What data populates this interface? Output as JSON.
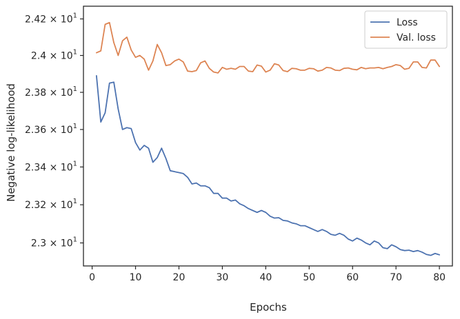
{
  "chart_data": {
    "type": "line",
    "xlabel": "Epochs",
    "ylabel": "Negative log-likelihood",
    "xlim": [
      -2,
      83
    ],
    "ylim": [
      22.88,
      24.27
    ],
    "x_ticks": [
      0,
      10,
      20,
      30,
      40,
      50,
      60,
      70,
      80
    ],
    "y_ticks": [
      {
        "value": 23.0,
        "mant": "2.3",
        "base": "10",
        "exp": "1"
      },
      {
        "value": 23.2,
        "mant": "2.32",
        "base": "10",
        "exp": "1"
      },
      {
        "value": 23.4,
        "mant": "2.34",
        "base": "10",
        "exp": "1"
      },
      {
        "value": 23.6,
        "mant": "2.36",
        "base": "10",
        "exp": "1"
      },
      {
        "value": 23.8,
        "mant": "2.38",
        "base": "10",
        "exp": "1"
      },
      {
        "value": 24.0,
        "mant": "2.4",
        "base": "10",
        "exp": "1"
      },
      {
        "value": 24.2,
        "mant": "2.42",
        "base": "10",
        "exp": "1"
      }
    ],
    "y_scale": "log",
    "grid": false,
    "legend_position": "top-right",
    "series": [
      {
        "name": "Loss",
        "color": "#4c72b0",
        "x": [
          1,
          2,
          3,
          4,
          5,
          6,
          7,
          8,
          9,
          10,
          11,
          12,
          13,
          14,
          15,
          16,
          17,
          18,
          19,
          20,
          21,
          22,
          23,
          24,
          25,
          26,
          27,
          28,
          29,
          30,
          31,
          32,
          33,
          34,
          35,
          36,
          37,
          38,
          39,
          40,
          41,
          42,
          43,
          44,
          45,
          46,
          47,
          48,
          49,
          50,
          51,
          52,
          53,
          54,
          55,
          56,
          57,
          58,
          59,
          60,
          61,
          62,
          63,
          64,
          65,
          66,
          67,
          68,
          69,
          70,
          71,
          72,
          73,
          74,
          75,
          76,
          77,
          78,
          79,
          80
        ],
        "y": [
          23.89,
          23.64,
          23.69,
          23.85,
          23.855,
          23.71,
          23.6,
          23.61,
          23.605,
          23.53,
          23.49,
          23.515,
          23.5,
          23.425,
          23.45,
          23.5,
          23.445,
          23.38,
          23.375,
          23.37,
          23.365,
          23.345,
          23.31,
          23.315,
          23.3,
          23.3,
          23.29,
          23.26,
          23.26,
          23.235,
          23.235,
          23.22,
          23.225,
          23.205,
          23.195,
          23.18,
          23.17,
          23.16,
          23.17,
          23.16,
          23.14,
          23.13,
          23.132,
          23.118,
          23.115,
          23.105,
          23.1,
          23.09,
          23.09,
          23.08,
          23.07,
          23.06,
          23.07,
          23.06,
          23.045,
          23.04,
          23.05,
          23.04,
          23.02,
          23.01,
          23.025,
          23.015,
          23.0,
          22.99,
          23.01,
          23.0,
          22.975,
          22.97,
          22.99,
          22.98,
          22.965,
          22.96,
          22.962,
          22.955,
          22.96,
          22.952,
          22.94,
          22.935,
          22.945,
          22.938
        ]
      },
      {
        "name": "Val. loss",
        "color": "#dd8452",
        "x": [
          1,
          2,
          3,
          4,
          5,
          6,
          7,
          8,
          9,
          10,
          11,
          12,
          13,
          14,
          15,
          16,
          17,
          18,
          19,
          20,
          21,
          22,
          23,
          24,
          25,
          26,
          27,
          28,
          29,
          30,
          31,
          32,
          33,
          34,
          35,
          36,
          37,
          38,
          39,
          40,
          41,
          42,
          43,
          44,
          45,
          46,
          47,
          48,
          49,
          50,
          51,
          52,
          53,
          54,
          55,
          56,
          57,
          58,
          59,
          60,
          61,
          62,
          63,
          64,
          65,
          66,
          67,
          68,
          69,
          70,
          71,
          72,
          73,
          74,
          75,
          76,
          77,
          78,
          79,
          80
        ],
        "y": [
          24.015,
          24.025,
          24.17,
          24.18,
          24.07,
          24.0,
          24.08,
          24.1,
          24.03,
          23.99,
          24.0,
          23.98,
          23.92,
          23.97,
          24.06,
          24.015,
          23.945,
          23.95,
          23.97,
          23.98,
          23.965,
          23.915,
          23.912,
          23.918,
          23.96,
          23.97,
          23.93,
          23.91,
          23.905,
          23.935,
          23.925,
          23.93,
          23.925,
          23.94,
          23.94,
          23.915,
          23.912,
          23.948,
          23.942,
          23.91,
          23.92,
          23.955,
          23.948,
          23.918,
          23.912,
          23.93,
          23.928,
          23.92,
          23.92,
          23.93,
          23.928,
          23.915,
          23.92,
          23.935,
          23.932,
          23.92,
          23.918,
          23.93,
          23.932,
          23.925,
          23.922,
          23.935,
          23.928,
          23.932,
          23.932,
          23.935,
          23.928,
          23.935,
          23.94,
          23.95,
          23.945,
          23.925,
          23.93,
          23.965,
          23.965,
          23.935,
          23.932,
          23.975,
          23.975,
          23.94
        ]
      }
    ]
  }
}
